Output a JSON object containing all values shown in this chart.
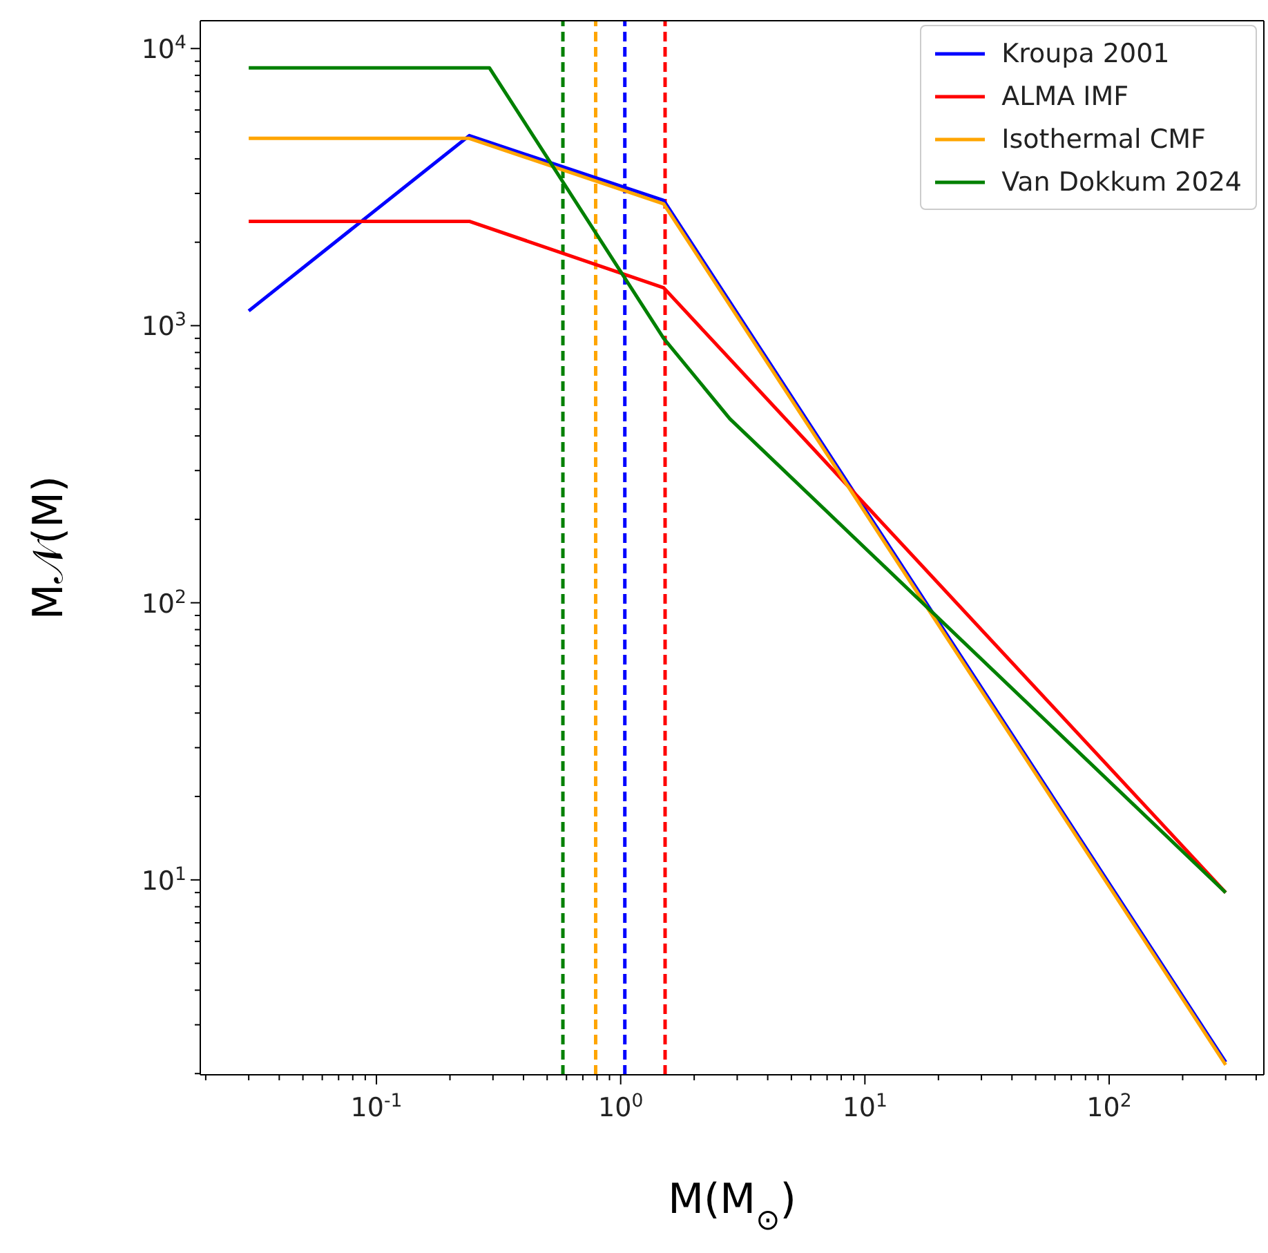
{
  "chart_data": {
    "type": "line",
    "xlabel": "M(M$_{⊙}$)",
    "ylabel": "M𝒩(M)",
    "log": "xy",
    "legend": "top right",
    "xlim": [
      0.019,
      430
    ],
    "ylim": [
      1.98,
      12600
    ],
    "xticks": [
      {
        "value": 0.02,
        "label": null
      },
      {
        "value": 0.03,
        "label": null
      },
      {
        "value": 0.04,
        "label": null
      },
      {
        "value": 0.05,
        "label": null
      },
      {
        "value": 0.06,
        "label": null
      },
      {
        "value": 0.07,
        "label": null
      },
      {
        "value": 0.08,
        "label": null
      },
      {
        "value": 0.09,
        "label": null
      },
      {
        "value": 0.1,
        "label": "10$^{-1}$"
      },
      {
        "value": 0.2,
        "label": null
      },
      {
        "value": 0.3,
        "label": null
      },
      {
        "value": 0.4,
        "label": null
      },
      {
        "value": 0.5,
        "label": null
      },
      {
        "value": 0.6,
        "label": null
      },
      {
        "value": 0.7,
        "label": null
      },
      {
        "value": 0.8,
        "label": null
      },
      {
        "value": 0.9,
        "label": null
      },
      {
        "value": 1,
        "label": "10$^{0}$"
      },
      {
        "value": 2,
        "label": null
      },
      {
        "value": 3,
        "label": null
      },
      {
        "value": 4,
        "label": null
      },
      {
        "value": 5,
        "label": null
      },
      {
        "value": 6,
        "label": null
      },
      {
        "value": 7,
        "label": null
      },
      {
        "value": 8,
        "label": null
      },
      {
        "value": 9,
        "label": null
      },
      {
        "value": 10,
        "label": "10$^{1}$"
      },
      {
        "value": 20,
        "label": null
      },
      {
        "value": 30,
        "label": null
      },
      {
        "value": 40,
        "label": null
      },
      {
        "value": 50,
        "label": null
      },
      {
        "value": 60,
        "label": null
      },
      {
        "value": 70,
        "label": null
      },
      {
        "value": 80,
        "label": null
      },
      {
        "value": 90,
        "label": null
      },
      {
        "value": 100,
        "label": "10$^{2}$"
      },
      {
        "value": 200,
        "label": null
      },
      {
        "value": 300,
        "label": null
      },
      {
        "value": 400,
        "label": null
      }
    ],
    "yticks": [
      {
        "value": 2,
        "label": null
      },
      {
        "value": 3,
        "label": null
      },
      {
        "value": 4,
        "label": null
      },
      {
        "value": 5,
        "label": null
      },
      {
        "value": 6,
        "label": null
      },
      {
        "value": 7,
        "label": null
      },
      {
        "value": 8,
        "label": null
      },
      {
        "value": 9,
        "label": null
      },
      {
        "value": 10,
        "label": "10$^{1}$"
      },
      {
        "value": 20,
        "label": null
      },
      {
        "value": 30,
        "label": null
      },
      {
        "value": 40,
        "label": null
      },
      {
        "value": 50,
        "label": null
      },
      {
        "value": 60,
        "label": null
      },
      {
        "value": 70,
        "label": null
      },
      {
        "value": 80,
        "label": null
      },
      {
        "value": 90,
        "label": null
      },
      {
        "value": 100,
        "label": "10$^{2}$"
      },
      {
        "value": 200,
        "label": null
      },
      {
        "value": 300,
        "label": null
      },
      {
        "value": 400,
        "label": null
      },
      {
        "value": 500,
        "label": null
      },
      {
        "value": 600,
        "label": null
      },
      {
        "value": 700,
        "label": null
      },
      {
        "value": 800,
        "label": null
      },
      {
        "value": 900,
        "label": null
      },
      {
        "value": 1000,
        "label": "10$^{3}$"
      },
      {
        "value": 2000,
        "label": null
      },
      {
        "value": 3000,
        "label": null
      },
      {
        "value": 4000,
        "label": null
      },
      {
        "value": 5000,
        "label": null
      },
      {
        "value": 6000,
        "label": null
      },
      {
        "value": 7000,
        "label": null
      },
      {
        "value": 8000,
        "label": null
      },
      {
        "value": 9000,
        "label": null
      },
      {
        "value": 10000,
        "label": "10$^{4}$"
      }
    ],
    "line_style": "solid",
    "series": [
      {
        "name": "Kroupa 2001",
        "color": "#0000ff",
        "x": [
          0.03,
          0.24,
          1.5,
          300
        ],
        "values": [
          1130,
          4850,
          2830,
          2.2
        ]
      },
      {
        "name": "ALMA IMF",
        "color": "#ff0000",
        "x": [
          0.03,
          0.24,
          1.5,
          300
        ],
        "values": [
          2380,
          2380,
          1370,
          9
        ]
      },
      {
        "name": "Isothermal CMF",
        "color": "#ffa500",
        "x": [
          0.03,
          0.24,
          1.5,
          300
        ],
        "values": [
          4740,
          4740,
          2750,
          2.15
        ]
      },
      {
        "name": "Van Dokkum 2024",
        "color": "#008000",
        "x": [
          0.03,
          0.29,
          1.5,
          2.8,
          300
        ],
        "values": [
          8520,
          8520,
          900,
          461,
          9
        ]
      }
    ],
    "ref_lines": [
      {
        "axis": "x",
        "value": 0.58,
        "color": "#008000",
        "line_style": "dashed"
      },
      {
        "axis": "x",
        "value": 0.79,
        "color": "#ffa500",
        "line_style": "dashed"
      },
      {
        "axis": "x",
        "value": 1.04,
        "color": "#0000ff",
        "line_style": "dashed"
      },
      {
        "axis": "x",
        "value": 1.52,
        "color": "#ff0000",
        "line_style": "dashed"
      }
    ]
  }
}
